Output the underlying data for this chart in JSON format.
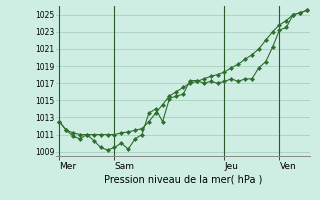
{
  "xlabel": "Pression niveau de la mer( hPa )",
  "background_color": "#ceeee4",
  "grid_color": "#a8cfc0",
  "line_color": "#2d6e2d",
  "ylim": [
    1008.5,
    1026.0
  ],
  "yticks": [
    1009,
    1011,
    1013,
    1015,
    1017,
    1019,
    1021,
    1023,
    1025
  ],
  "day_labels": [
    "Mer",
    "Sam",
    "Jeu",
    "Ven"
  ],
  "total_points": 37,
  "line1_x": [
    0,
    1,
    2,
    3,
    4,
    5,
    6,
    7,
    8,
    9,
    10,
    11,
    12,
    13,
    14,
    15,
    16,
    17,
    18,
    19,
    20,
    21,
    22,
    23,
    24,
    25,
    26,
    27,
    28,
    29,
    30,
    31,
    32,
    33,
    34,
    35,
    36
  ],
  "line1_y": [
    1012.5,
    1011.5,
    1010.8,
    1010.5,
    1011.0,
    1010.3,
    1009.5,
    1009.2,
    1009.5,
    1010.0,
    1009.3,
    1010.5,
    1011.0,
    1013.5,
    1014.0,
    1012.5,
    1015.2,
    1015.5,
    1015.7,
    1017.3,
    1017.3,
    1017.0,
    1017.2,
    1017.0,
    1017.2,
    1017.5,
    1017.2,
    1017.5,
    1017.5,
    1018.8,
    1019.5,
    1021.2,
    1023.2,
    1023.5,
    1025.0,
    1025.2,
    1025.5
  ],
  "line2_x": [
    0,
    1,
    2,
    3,
    4,
    5,
    6,
    7,
    8,
    9,
    10,
    11,
    12,
    13,
    14,
    15,
    16,
    17,
    18,
    19,
    20,
    21,
    22,
    23,
    24,
    25,
    26,
    27,
    28,
    29,
    30,
    31,
    32,
    33,
    34,
    35,
    36
  ],
  "line2_y": [
    1012.5,
    1011.5,
    1011.2,
    1011.0,
    1011.0,
    1011.0,
    1011.0,
    1011.0,
    1011.0,
    1011.2,
    1011.3,
    1011.5,
    1011.7,
    1012.5,
    1013.5,
    1014.5,
    1015.5,
    1016.0,
    1016.5,
    1017.0,
    1017.2,
    1017.5,
    1017.8,
    1018.0,
    1018.3,
    1018.8,
    1019.2,
    1019.8,
    1020.3,
    1021.0,
    1022.0,
    1023.0,
    1023.8,
    1024.3,
    1025.0,
    1025.2,
    1025.5
  ],
  "vline_positions": [
    0,
    8,
    24,
    32
  ]
}
